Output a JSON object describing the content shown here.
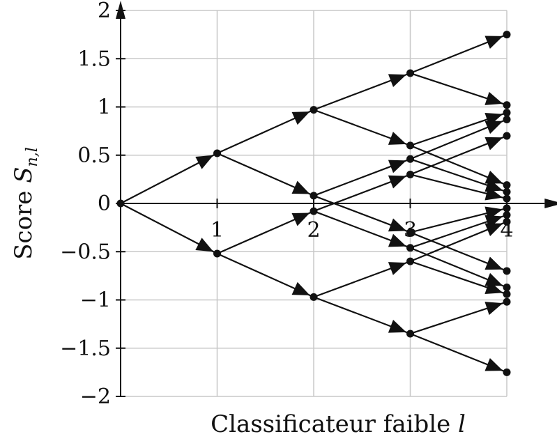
{
  "chart_data": {
    "type": "line",
    "title": "",
    "xlabel": "Classificateur faible",
    "xlabel_var": "l",
    "ylabel": "Score",
    "ylabel_var": "S",
    "ylabel_sub": "n,l",
    "xlim": [
      0,
      4.5
    ],
    "ylim": [
      -2,
      2
    ],
    "x_ticks": [
      "1",
      "2",
      "3",
      "4"
    ],
    "y_ticks": [
      "−2",
      "−1.5",
      "−1",
      "−0.5",
      "0",
      "0.5",
      "1",
      "1.5",
      "2"
    ],
    "grid": true,
    "nodes": [
      {
        "x": 0,
        "y": 0
      },
      {
        "x": 1,
        "y": 0.52
      },
      {
        "x": 1,
        "y": -0.52
      },
      {
        "x": 2,
        "y": 0.97
      },
      {
        "x": 2,
        "y": 0.08
      },
      {
        "x": 2,
        "y": -0.08
      },
      {
        "x": 2,
        "y": -0.97
      },
      {
        "x": 3,
        "y": 1.35
      },
      {
        "x": 3,
        "y": 0.6
      },
      {
        "x": 3,
        "y": 0.46
      },
      {
        "x": 3,
        "y": 0.3
      },
      {
        "x": 3,
        "y": -0.3
      },
      {
        "x": 3,
        "y": -0.46
      },
      {
        "x": 3,
        "y": -0.6
      },
      {
        "x": 3,
        "y": -1.35
      },
      {
        "x": 4,
        "y": 1.75
      },
      {
        "x": 4,
        "y": 1.02
      },
      {
        "x": 4,
        "y": 0.94
      },
      {
        "x": 4,
        "y": 0.87
      },
      {
        "x": 4,
        "y": 0.7
      },
      {
        "x": 4,
        "y": 0.19
      },
      {
        "x": 4,
        "y": 0.12
      },
      {
        "x": 4,
        "y": 0.05
      },
      {
        "x": 4,
        "y": -0.05
      },
      {
        "x": 4,
        "y": -0.12
      },
      {
        "x": 4,
        "y": -0.19
      },
      {
        "x": 4,
        "y": -0.7
      },
      {
        "x": 4,
        "y": -0.87
      },
      {
        "x": 4,
        "y": -0.94
      },
      {
        "x": 4,
        "y": -1.02
      },
      {
        "x": 4,
        "y": -1.75
      }
    ],
    "edges": [
      {
        "from": [
          0,
          0
        ],
        "to": [
          1,
          0.52
        ]
      },
      {
        "from": [
          0,
          0
        ],
        "to": [
          1,
          -0.52
        ]
      },
      {
        "from": [
          1,
          0.52
        ],
        "to": [
          2,
          0.97
        ]
      },
      {
        "from": [
          1,
          0.52
        ],
        "to": [
          2,
          0.08
        ]
      },
      {
        "from": [
          1,
          -0.52
        ],
        "to": [
          2,
          -0.08
        ]
      },
      {
        "from": [
          1,
          -0.52
        ],
        "to": [
          2,
          -0.97
        ]
      },
      {
        "from": [
          2,
          0.97
        ],
        "to": [
          3,
          1.35
        ]
      },
      {
        "from": [
          2,
          0.97
        ],
        "to": [
          3,
          0.6
        ]
      },
      {
        "from": [
          2,
          0.08
        ],
        "to": [
          3,
          0.46
        ]
      },
      {
        "from": [
          2,
          0.08
        ],
        "to": [
          3,
          -0.3
        ]
      },
      {
        "from": [
          2,
          -0.08
        ],
        "to": [
          3,
          0.3
        ]
      },
      {
        "from": [
          2,
          -0.08
        ],
        "to": [
          3,
          -0.46
        ]
      },
      {
        "from": [
          2,
          -0.97
        ],
        "to": [
          3,
          -0.6
        ]
      },
      {
        "from": [
          2,
          -0.97
        ],
        "to": [
          3,
          -1.35
        ]
      },
      {
        "from": [
          3,
          1.35
        ],
        "to": [
          4,
          1.75
        ]
      },
      {
        "from": [
          3,
          1.35
        ],
        "to": [
          4,
          1.02
        ]
      },
      {
        "from": [
          3,
          0.6
        ],
        "to": [
          4,
          0.94
        ]
      },
      {
        "from": [
          3,
          0.6
        ],
        "to": [
          4,
          0.19
        ]
      },
      {
        "from": [
          3,
          0.46
        ],
        "to": [
          4,
          0.87
        ]
      },
      {
        "from": [
          3,
          0.46
        ],
        "to": [
          4,
          0.12
        ]
      },
      {
        "from": [
          3,
          0.3
        ],
        "to": [
          4,
          0.7
        ]
      },
      {
        "from": [
          3,
          0.3
        ],
        "to": [
          4,
          0.05
        ]
      },
      {
        "from": [
          3,
          -0.3
        ],
        "to": [
          4,
          -0.05
        ]
      },
      {
        "from": [
          3,
          -0.3
        ],
        "to": [
          4,
          -0.7
        ]
      },
      {
        "from": [
          3,
          -0.46
        ],
        "to": [
          4,
          -0.12
        ]
      },
      {
        "from": [
          3,
          -0.46
        ],
        "to": [
          4,
          -0.87
        ]
      },
      {
        "from": [
          3,
          -0.6
        ],
        "to": [
          4,
          -0.19
        ]
      },
      {
        "from": [
          3,
          -0.6
        ],
        "to": [
          4,
          -0.94
        ]
      },
      {
        "from": [
          3,
          -1.35
        ],
        "to": [
          4,
          -1.02
        ]
      },
      {
        "from": [
          3,
          -1.35
        ],
        "to": [
          4,
          -1.75
        ]
      }
    ]
  }
}
